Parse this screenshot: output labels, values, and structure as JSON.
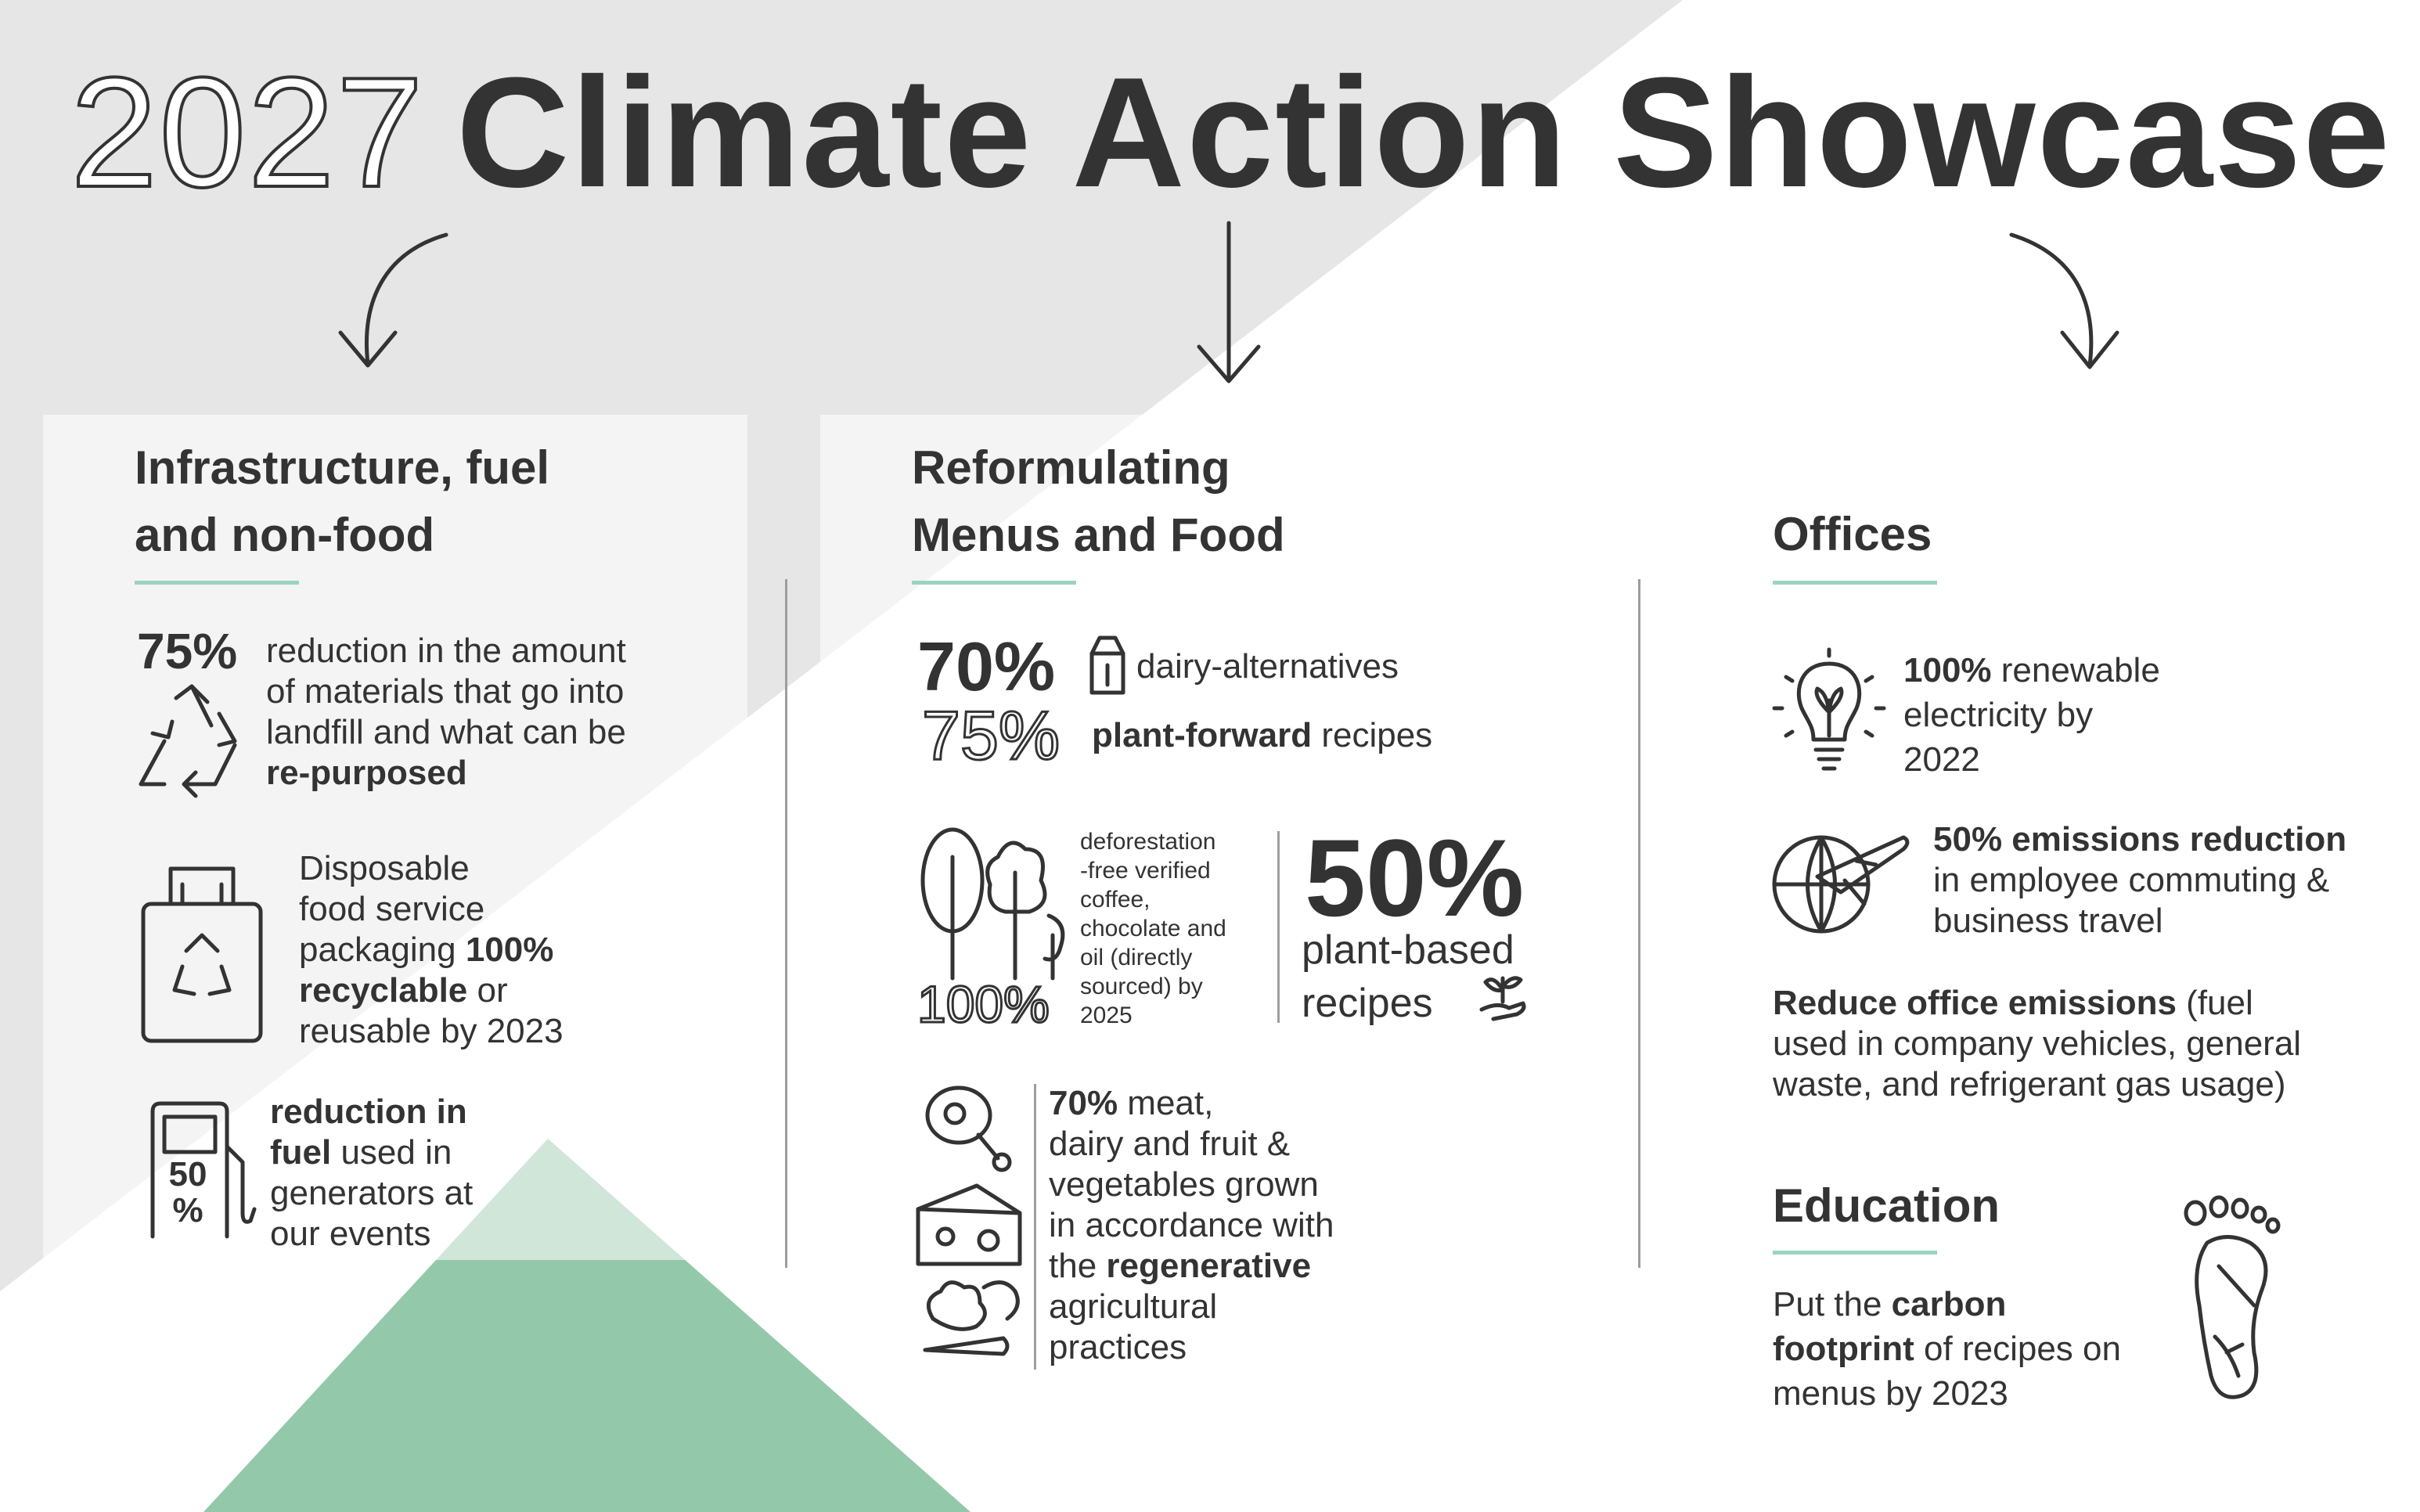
{
  "title": {
    "year": "2027",
    "main": "Climate Action Showcase"
  },
  "columns": {
    "infrastructure": {
      "title_line1": "Infrastructure, fuel",
      "title_line2": "and non-food",
      "item1": {
        "pct": "75%",
        "line1": "reduction in the amount",
        "line2": "of materials that go into",
        "line3": "landfill and what can be",
        "bold": "re-purposed"
      },
      "item2": {
        "line1": "Disposable",
        "line2": "food service",
        "line3_pre": "packaging ",
        "line3_bold": "100%",
        "line4_bold": "recyclable",
        "line4_post": " or",
        "line5": "reusable by 2023"
      },
      "item3": {
        "line1_bold": "reduction in",
        "line2_bold": "fuel",
        "line2_post": " used in",
        "line3": "generators at",
        "line4": "our events",
        "pump_line1": "50",
        "pump_line2": "%"
      }
    },
    "menus": {
      "title_line1": "Reformulating",
      "title_line2": "Menus and Food",
      "stat1": {
        "pct": "70%",
        "label": "dairy-alternatives"
      },
      "stat2": {
        "pct": "75%",
        "bold": "plant-forward",
        "post": " recipes"
      },
      "deforest": {
        "pct": "100%",
        "l1": "deforestation",
        "l2": "-free verified",
        "l3": "coffee,",
        "l4": "chocolate and",
        "l5": "oil (directly",
        "l6": "sourced) by",
        "l7": "2025"
      },
      "plant": {
        "pct": "50%",
        "l1": "plant-based",
        "l2": "recipes"
      },
      "regen": {
        "l1_bold": "70%",
        "l1_post": " meat,",
        "l2": "dairy and fruit &",
        "l3": "vegetables grown",
        "l4": "in accordance with",
        "l5_pre": "the ",
        "l5_bold": "regenerative",
        "l6": "agricultural",
        "l7": "practices"
      }
    },
    "offices": {
      "title": "Offices",
      "item1": {
        "bold": "100%",
        "post": " renewable",
        "l2": "electricity by",
        "l3": "2022"
      },
      "item2": {
        "bold": "50% emissions reduction",
        "l2": "in employee commuting &",
        "l3": "business travel"
      },
      "item3": {
        "bold": "Reduce office emissions",
        "post": " (fuel",
        "l2": "used in company vehicles, general",
        "l3": "waste, and refrigerant gas usage)"
      }
    },
    "education": {
      "title": "Education",
      "l1_pre": "Put the ",
      "l1_bold": "carbon",
      "l2_bold": "footprint",
      "l2_post": " of recipes on",
      "l3": "menus by 2023"
    }
  },
  "colors": {
    "accent_green": "#8ec5a6",
    "underline": "#9bd3c0",
    "text": "#333333"
  },
  "icons": [
    "arrow-down-icon",
    "recycle-icon",
    "recycle-bag-icon",
    "fuel-pump-icon",
    "milk-carton-icon",
    "trees-icon",
    "sprout-hand-icon",
    "ham-icon",
    "cheese-icon",
    "vegetables-icon",
    "lightbulb-leaf-icon",
    "globe-plane-icon",
    "footprint-icon"
  ]
}
